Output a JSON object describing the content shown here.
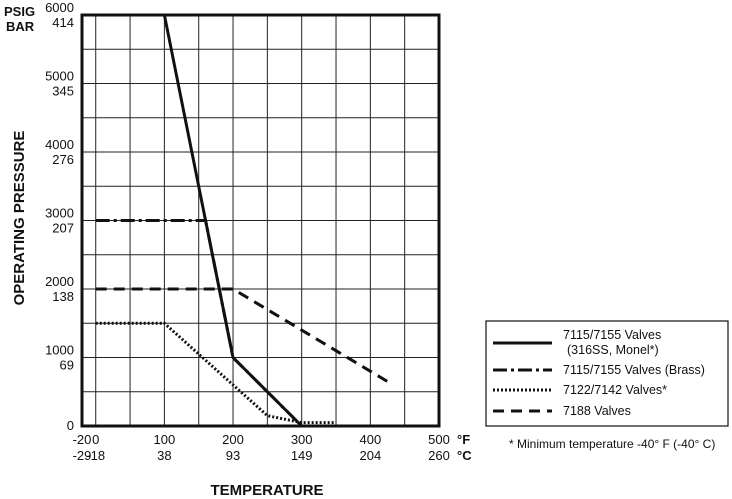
{
  "chart_data": {
    "type": "line",
    "xlabel": "TEMPERATURE",
    "ylabel": "OPERATING PRESSURE",
    "x_unit_primary": "°F",
    "x_unit_secondary": "°C",
    "y_unit_primary": "PSIG",
    "y_unit_secondary": "BAR",
    "xlim": [
      -20,
      500
    ],
    "ylim": [
      0,
      6000
    ],
    "x_ticks": [
      {
        "f": "-20",
        "c": "-29",
        "value": -20
      },
      {
        "f": "0",
        "c": "-18",
        "value": 0
      },
      {
        "f": "100",
        "c": "38",
        "value": 100
      },
      {
        "f": "200",
        "c": "93",
        "value": 200
      },
      {
        "f": "300",
        "c": "149",
        "value": 300
      },
      {
        "f": "400",
        "c": "204",
        "value": 400
      },
      {
        "f": "500",
        "c": "260",
        "value": 500
      }
    ],
    "y_ticks": [
      {
        "psig": "6000",
        "bar": "414",
        "value": 6000
      },
      {
        "psig": "5000",
        "bar": "345",
        "value": 5000
      },
      {
        "psig": "4000",
        "bar": "276",
        "value": 4000
      },
      {
        "psig": "3000",
        "bar": "207",
        "value": 3000
      },
      {
        "psig": "2000",
        "bar": "138",
        "value": 2000
      },
      {
        "psig": "1000",
        "bar": "69",
        "value": 1000
      },
      {
        "psig": "0",
        "bar": "",
        "value": 0
      }
    ],
    "grid": true,
    "legend_position": "right",
    "series": [
      {
        "name": "7115/7155 Valves",
        "name_line2": "(316SS, Monel*)",
        "style": "solid",
        "points": [
          [
            0,
            6000
          ],
          [
            100,
            6000
          ],
          [
            200,
            1000
          ],
          [
            300,
            0
          ]
        ]
      },
      {
        "name": "7115/7155 Valves (Brass)",
        "style": "dashdot",
        "points": [
          [
            0,
            3000
          ],
          [
            160,
            3000
          ],
          [
            200,
            1000
          ],
          [
            300,
            0
          ]
        ]
      },
      {
        "name": "7122/7142 Valves*",
        "style": "dotted",
        "points": [
          [
            0,
            1500
          ],
          [
            100,
            1500
          ],
          [
            250,
            150
          ],
          [
            300,
            50
          ],
          [
            350,
            50
          ]
        ]
      },
      {
        "name": "7188 Valves",
        "style": "dashed",
        "points": [
          [
            0,
            2000
          ],
          [
            200,
            2000
          ],
          [
            425,
            650
          ]
        ]
      }
    ],
    "footnote": "* Minimum temperature -40° F (-40° C)"
  }
}
